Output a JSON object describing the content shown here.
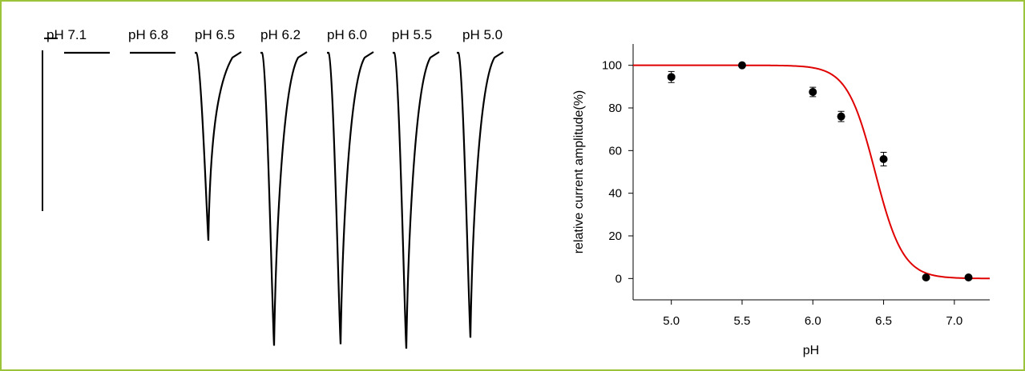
{
  "colors": {
    "frame": "#9bc43a",
    "fit": "#e00000",
    "trace": "#000000",
    "marker": "#000000"
  },
  "traces": {
    "labels": [
      "pH 7.1",
      "pH 6.8",
      "pH 6.5",
      "pH 6.2",
      "pH 6.0",
      "pH 5.5",
      "pH 5.0"
    ],
    "peaks": [
      0,
      0,
      0.635,
      0.99,
      0.985,
      1.0,
      0.963
    ]
  },
  "chart_data": {
    "type": "scatter",
    "title": "",
    "xlabel": "pH",
    "ylabel": "relative current amplitude(%)",
    "xlim": [
      4.73,
      7.25
    ],
    "ylim": [
      -10,
      110
    ],
    "xticks": [
      5.0,
      5.5,
      6.0,
      6.5,
      7.0
    ],
    "xtick_labels": [
      "5.0",
      "5.5",
      "6.0",
      "6.5",
      "7.0"
    ],
    "yticks": [
      0,
      20,
      40,
      60,
      80,
      100
    ],
    "ytick_labels": [
      "0",
      "20",
      "40",
      "60",
      "80",
      "100"
    ],
    "grid": false,
    "legend": "none",
    "series": [
      {
        "x": [
          5.0,
          5.5,
          6.0,
          6.2,
          6.5,
          6.8,
          7.1
        ],
        "y": [
          94.5,
          100,
          87.5,
          76,
          56,
          0.5,
          0.5
        ],
        "err": [
          2.6,
          0.8,
          2.2,
          2.4,
          3.2,
          0.5,
          0.5
        ]
      }
    ],
    "fit": {
      "type": "hill",
      "top": 100,
      "pH50": 6.44,
      "slope": 4.4
    }
  }
}
